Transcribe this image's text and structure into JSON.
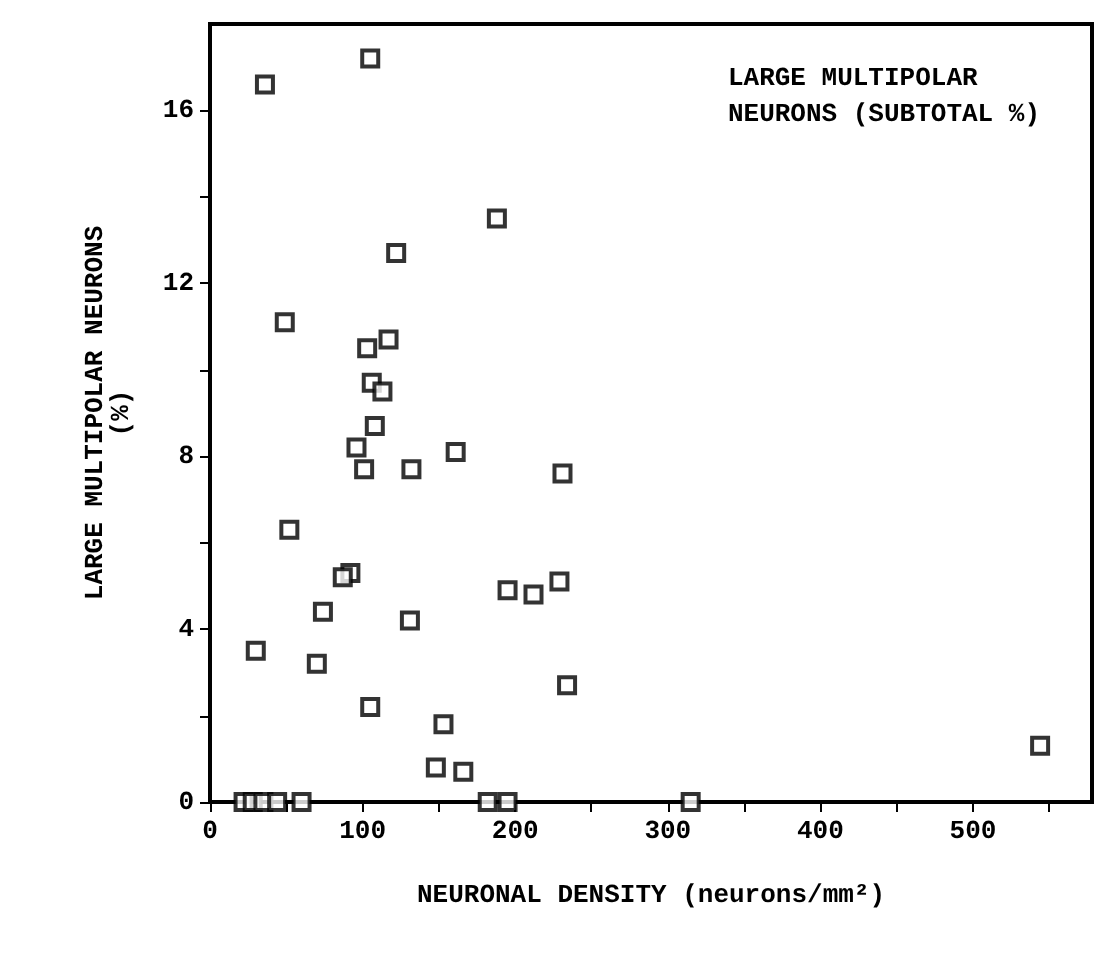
{
  "chart_data": {
    "type": "scatter",
    "xlabel": "NEURONAL DENSITY (neurons/mm²)",
    "ylabel": "LARGE MULTIPOLAR NEURONS\n(%)",
    "annotations": [
      "LARGE MULTIPOLAR\nNEURONS (SUBTOTAL %)"
    ],
    "x": [
      36,
      105,
      188,
      122,
      49,
      117,
      103,
      106,
      113,
      108,
      96,
      101,
      132,
      161,
      231,
      52,
      92,
      87,
      74,
      30,
      70,
      131,
      195,
      212,
      229,
      234,
      105,
      153,
      148,
      166,
      22,
      28,
      35,
      44,
      60,
      182,
      195,
      315,
      544
    ],
    "values": [
      16.6,
      17.2,
      13.5,
      12.7,
      11.1,
      10.7,
      10.5,
      9.7,
      9.5,
      8.7,
      8.2,
      7.7,
      7.7,
      8.1,
      7.6,
      6.3,
      5.3,
      5.2,
      4.4,
      3.5,
      3.2,
      4.2,
      4.9,
      4.8,
      5.1,
      2.7,
      2.2,
      1.8,
      0.8,
      0.7,
      0,
      0,
      0,
      0,
      0,
      0,
      0,
      0,
      1.3
    ],
    "color": "#000000",
    "marker": "square",
    "grid": false,
    "xlim": [
      0,
      578
    ],
    "xticks": [
      0,
      {
        "value": 50,
        "label": null
      },
      100,
      {
        "value": 150,
        "label": null
      },
      200,
      {
        "value": 250,
        "label": null
      },
      300,
      {
        "value": 350,
        "label": null
      },
      400,
      {
        "value": 450,
        "label": null
      },
      500,
      {
        "value": 550,
        "label": null
      }
    ],
    "ylim": [
      0,
      18
    ],
    "yticks": [
      0,
      {
        "value": 2,
        "label": null
      },
      4,
      {
        "value": 6,
        "label": null
      },
      8,
      {
        "value": 10,
        "label": null
      },
      12,
      {
        "value": 14,
        "label": null
      },
      16
    ]
  }
}
